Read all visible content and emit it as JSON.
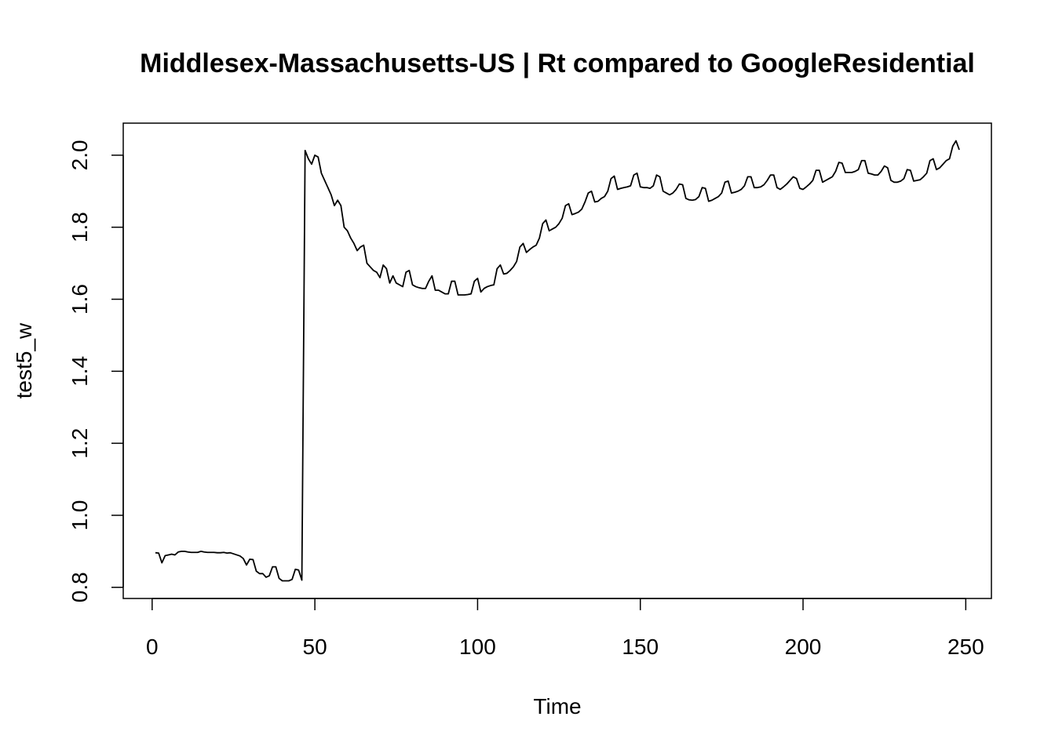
{
  "chart_data": {
    "type": "line",
    "title": "Middlesex-Massachusetts-US | Rt compared to GoogleResidential",
    "xlabel": "Time",
    "ylabel": "test5_w",
    "color": "#000000",
    "xlim": [
      -8.88,
      257.88
    ],
    "ylim": [
      0.769,
      2.089
    ],
    "xticks": [
      0,
      50,
      100,
      150,
      200,
      250
    ],
    "yticks": [
      0.8,
      {
        "value": 1,
        "label": "1.0"
      },
      1.2,
      1.4,
      1.6,
      1.8,
      {
        "value": 2,
        "label": "2.0"
      }
    ],
    "x": [
      1,
      2,
      3,
      4,
      5,
      6,
      7,
      8,
      9,
      10,
      11,
      12,
      13,
      14,
      15,
      16,
      17,
      18,
      19,
      20,
      21,
      22,
      23,
      24,
      25,
      26,
      27,
      28,
      29,
      30,
      31,
      32,
      33,
      34,
      35,
      36,
      37,
      38,
      39,
      40,
      41,
      42,
      43,
      44,
      45,
      46,
      47,
      48,
      49,
      50,
      51,
      52,
      53,
      54,
      55,
      56,
      57,
      58,
      59,
      60,
      61,
      62,
      63,
      64,
      65,
      66,
      67,
      68,
      69,
      70,
      71,
      72,
      73,
      74,
      75,
      76,
      77,
      78,
      79,
      80,
      81,
      82,
      83,
      84,
      85,
      86,
      87,
      88,
      89,
      90,
      91,
      92,
      93,
      94,
      95,
      96,
      97,
      98,
      99,
      100,
      101,
      102,
      103,
      104,
      105,
      106,
      107,
      108,
      109,
      110,
      111,
      112,
      113,
      114,
      115,
      116,
      117,
      118,
      119,
      120,
      121,
      122,
      123,
      124,
      125,
      126,
      127,
      128,
      129,
      130,
      131,
      132,
      133,
      134,
      135,
      136,
      137,
      138,
      139,
      140,
      141,
      142,
      143,
      144,
      145,
      146,
      147,
      148,
      149,
      150,
      151,
      152,
      153,
      154,
      155,
      156,
      157,
      158,
      159,
      160,
      161,
      162,
      163,
      164,
      165,
      166,
      167,
      168,
      169,
      170,
      171,
      172,
      173,
      174,
      175,
      176,
      177,
      178,
      179,
      180,
      181,
      182,
      183,
      184,
      185,
      186,
      187,
      188,
      189,
      190,
      191,
      192,
      193,
      194,
      195,
      196,
      197,
      198,
      199,
      200,
      201,
      202,
      203,
      204,
      205,
      206,
      207,
      208,
      209,
      210,
      211,
      212,
      213,
      214,
      215,
      216,
      217,
      218,
      219,
      220,
      221,
      222,
      223,
      224,
      225,
      226,
      227,
      228,
      229,
      230,
      231,
      232,
      233,
      234,
      235,
      236,
      237,
      238,
      239,
      240,
      241,
      242,
      243,
      244,
      245,
      246,
      247,
      248
    ],
    "values": [
      0.896,
      0.895,
      0.868,
      0.888,
      0.89,
      0.892,
      0.89,
      0.898,
      0.9,
      0.9,
      0.898,
      0.897,
      0.897,
      0.897,
      0.9,
      0.898,
      0.897,
      0.897,
      0.897,
      0.896,
      0.896,
      0.897,
      0.895,
      0.896,
      0.893,
      0.89,
      0.887,
      0.88,
      0.862,
      0.878,
      0.877,
      0.845,
      0.838,
      0.838,
      0.828,
      0.832,
      0.857,
      0.857,
      0.825,
      0.818,
      0.818,
      0.818,
      0.822,
      0.85,
      0.848,
      0.82,
      2.013,
      1.99,
      1.975,
      2.0,
      1.995,
      1.95,
      1.93,
      1.91,
      1.89,
      1.86,
      1.875,
      1.86,
      1.8,
      1.79,
      1.77,
      1.755,
      1.735,
      1.745,
      1.75,
      1.7,
      1.69,
      1.68,
      1.675,
      1.66,
      1.695,
      1.685,
      1.645,
      1.665,
      1.645,
      1.64,
      1.635,
      1.675,
      1.68,
      1.64,
      1.635,
      1.632,
      1.63,
      1.63,
      1.65,
      1.665,
      1.625,
      1.625,
      1.62,
      1.615,
      1.615,
      1.65,
      1.65,
      1.612,
      1.612,
      1.612,
      1.613,
      1.615,
      1.65,
      1.658,
      1.62,
      1.63,
      1.635,
      1.638,
      1.64,
      1.685,
      1.695,
      1.67,
      1.672,
      1.68,
      1.69,
      1.705,
      1.745,
      1.755,
      1.73,
      1.738,
      1.745,
      1.75,
      1.77,
      1.81,
      1.82,
      1.79,
      1.795,
      1.8,
      1.81,
      1.825,
      1.86,
      1.865,
      1.835,
      1.838,
      1.842,
      1.85,
      1.87,
      1.895,
      1.9,
      1.87,
      1.872,
      1.88,
      1.885,
      1.9,
      1.935,
      1.942,
      1.905,
      1.908,
      1.91,
      1.912,
      1.915,
      1.945,
      1.95,
      1.912,
      1.91,
      1.91,
      1.908,
      1.915,
      1.945,
      1.94,
      1.9,
      1.895,
      1.89,
      1.895,
      1.905,
      1.92,
      1.918,
      1.88,
      1.876,
      1.875,
      1.877,
      1.885,
      1.91,
      1.908,
      1.872,
      1.875,
      1.88,
      1.885,
      1.895,
      1.925,
      1.928,
      1.895,
      1.897,
      1.9,
      1.905,
      1.915,
      1.94,
      1.94,
      1.91,
      1.91,
      1.912,
      1.918,
      1.93,
      1.945,
      1.945,
      1.91,
      1.905,
      1.912,
      1.92,
      1.93,
      1.94,
      1.935,
      1.908,
      1.905,
      1.912,
      1.92,
      1.93,
      1.958,
      1.958,
      1.925,
      1.93,
      1.935,
      1.94,
      1.955,
      1.98,
      1.978,
      1.952,
      1.952,
      1.952,
      1.955,
      1.96,
      1.985,
      1.985,
      1.95,
      1.948,
      1.945,
      1.945,
      1.955,
      1.97,
      1.965,
      1.93,
      1.925,
      1.925,
      1.928,
      1.935,
      1.96,
      1.958,
      1.928,
      1.93,
      1.932,
      1.94,
      1.95,
      1.985,
      1.99,
      1.96,
      1.965,
      1.975,
      1.985,
      1.99,
      2.025,
      2.04,
      2.015
    ]
  }
}
